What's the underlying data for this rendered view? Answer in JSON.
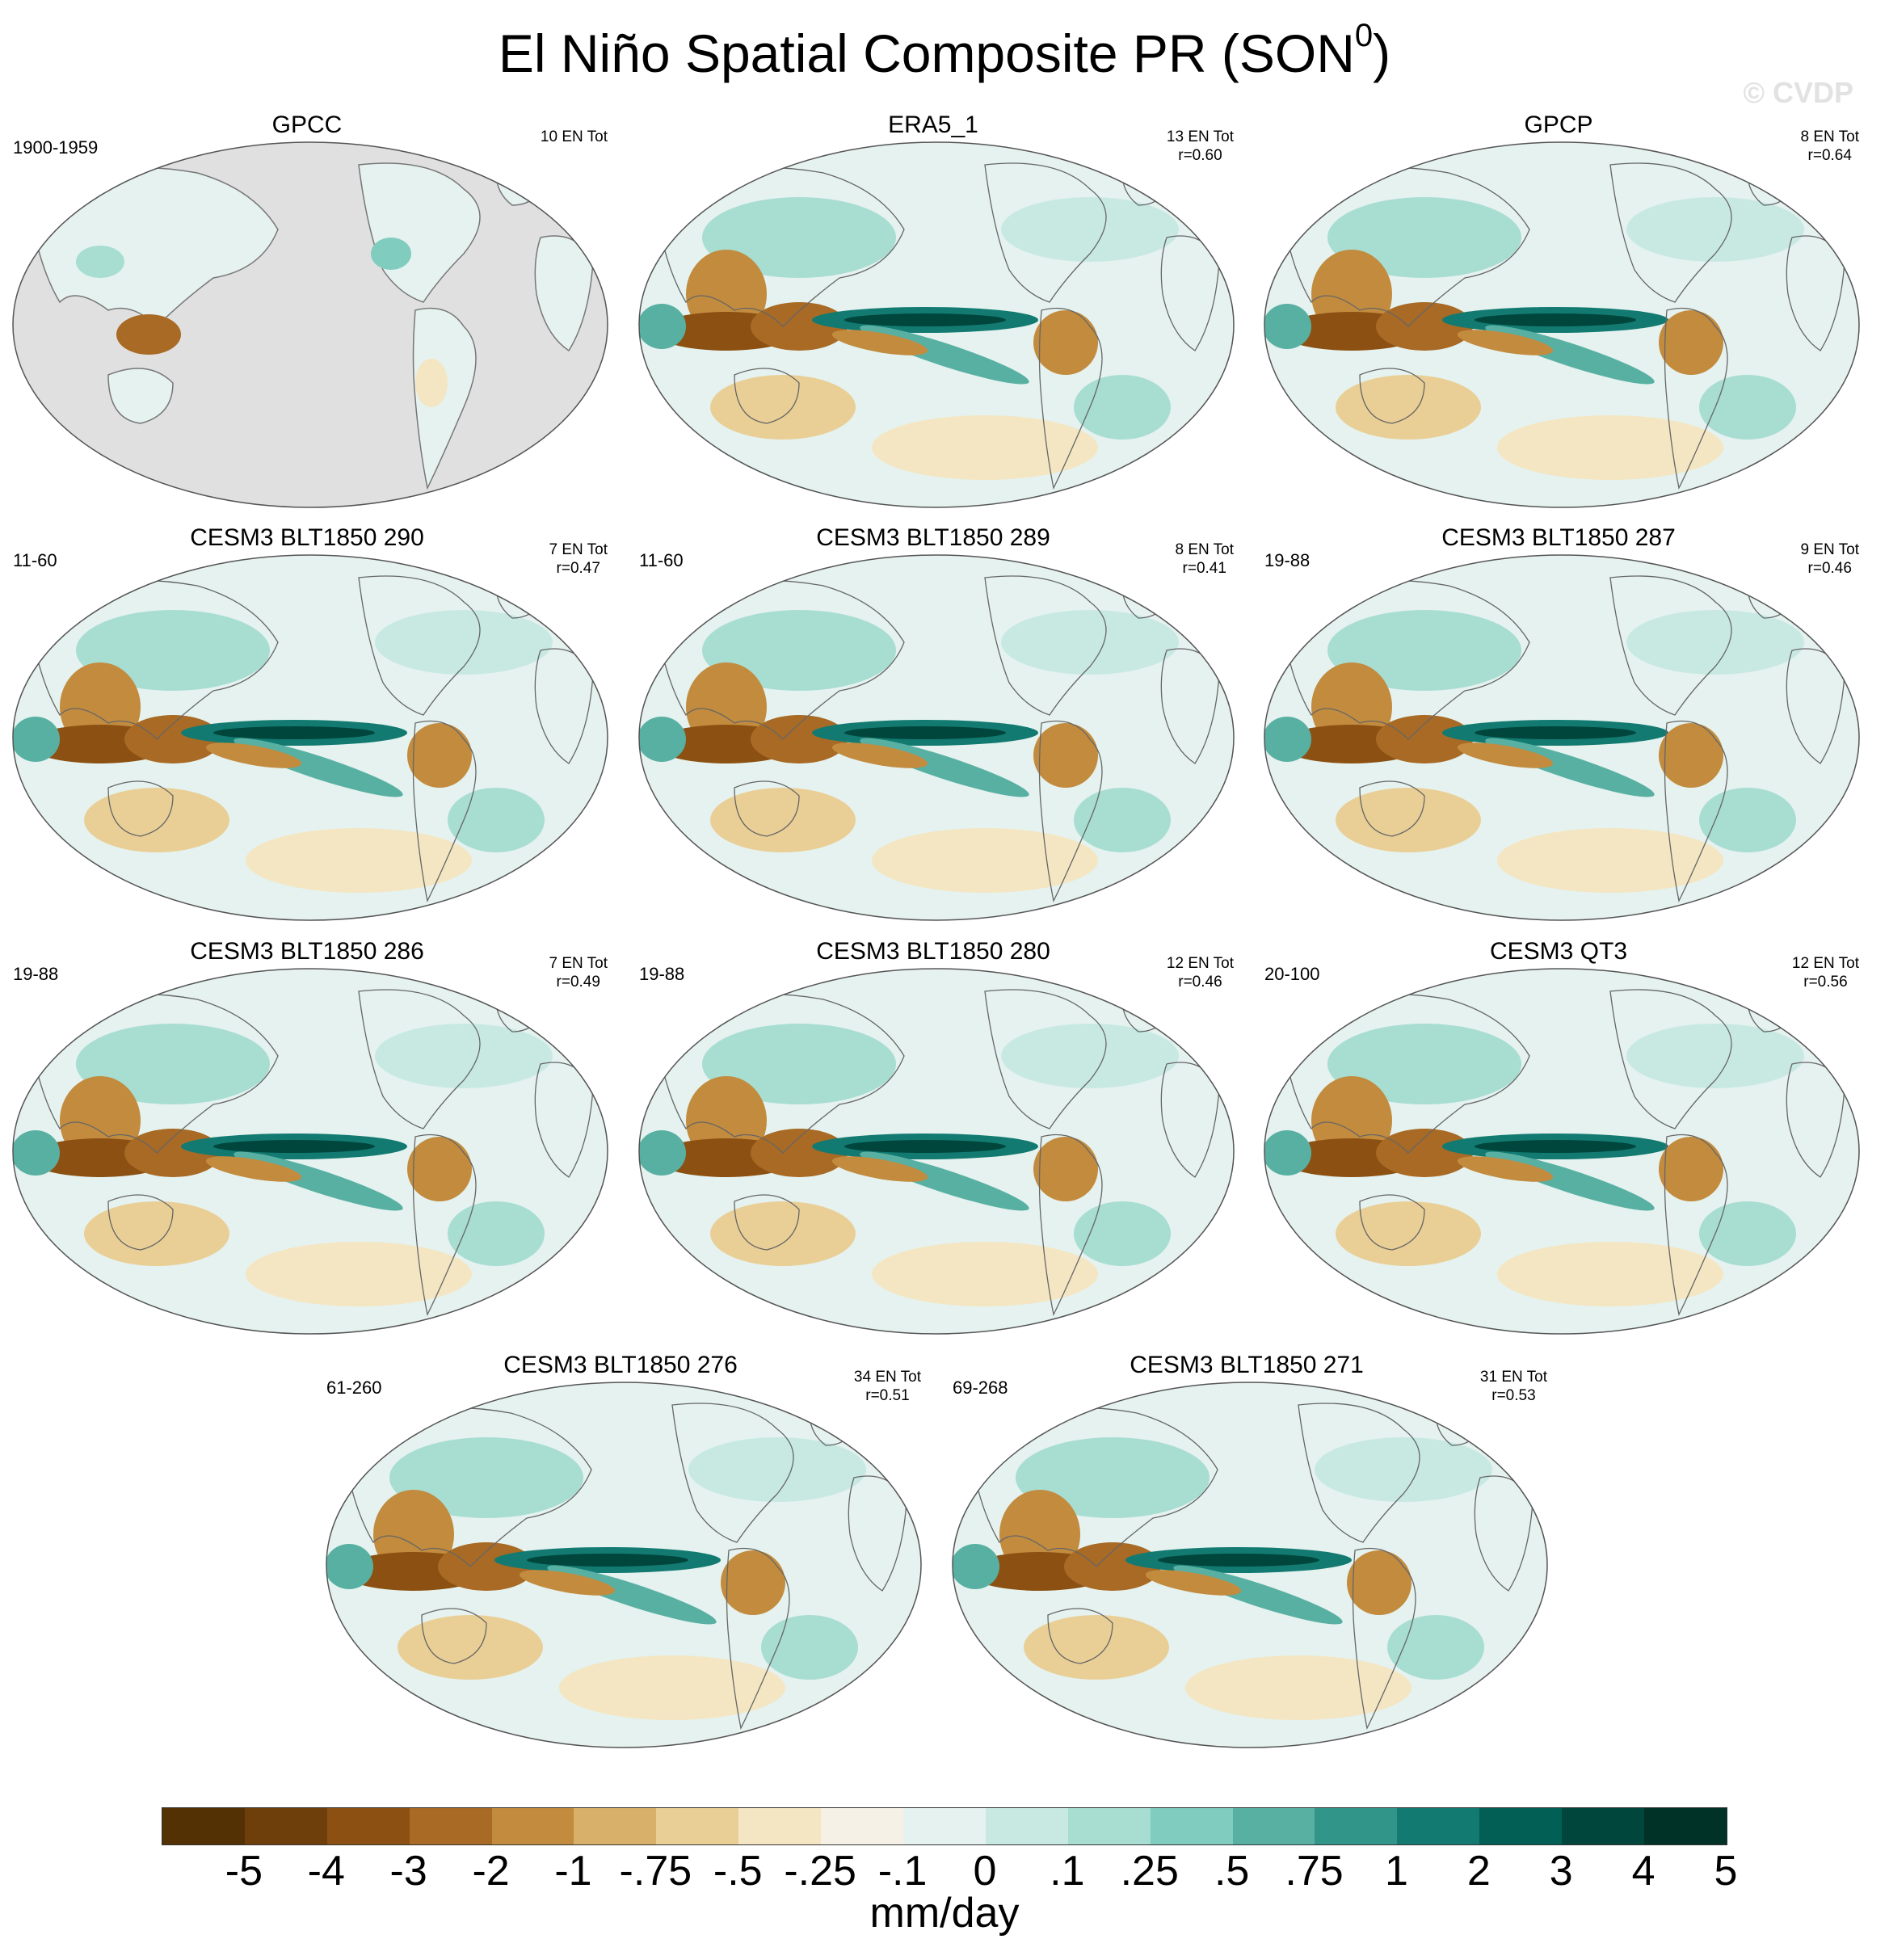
{
  "title": {
    "main": "El Niño Spatial Composite PR (SON",
    "superscript": "0",
    "close": ")"
  },
  "watermark": "© CVDP",
  "panels": [
    {
      "title": "GPCC",
      "left_label": "1900-1959",
      "right_line1": "10 EN Tot",
      "right_line2": "",
      "missing_ocean": true
    },
    {
      "title": "ERA5_1",
      "left_label": "",
      "right_line1": "13 EN Tot",
      "right_line2": "r=0.60",
      "missing_ocean": false
    },
    {
      "title": "GPCP",
      "left_label": "",
      "right_line1": "8 EN Tot",
      "right_line2": "r=0.64",
      "missing_ocean": false
    },
    {
      "title": "CESM3 BLT1850 290",
      "left_label": "11-60",
      "right_line1": "7 EN Tot",
      "right_line2": "r=0.47",
      "missing_ocean": false
    },
    {
      "title": "CESM3 BLT1850 289",
      "left_label": "11-60",
      "right_line1": "8 EN Tot",
      "right_line2": "r=0.41",
      "missing_ocean": false
    },
    {
      "title": "CESM3 BLT1850 287",
      "left_label": "19-88",
      "right_line1": "9 EN Tot",
      "right_line2": "r=0.46",
      "missing_ocean": false
    },
    {
      "title": "CESM3 BLT1850 286",
      "left_label": "19-88",
      "right_line1": "7 EN Tot",
      "right_line2": "r=0.49",
      "missing_ocean": false
    },
    {
      "title": "CESM3 BLT1850 280",
      "left_label": "19-88",
      "right_line1": "12 EN Tot",
      "right_line2": "r=0.46",
      "missing_ocean": false
    },
    {
      "title": "CESM3 QT3",
      "left_label": "20-100",
      "right_line1": "12 EN Tot",
      "right_line2": "r=0.56",
      "missing_ocean": false
    },
    {
      "title": "CESM3 BLT1850 276",
      "left_label": "61-260",
      "right_line1": "34 EN Tot",
      "right_line2": "r=0.51",
      "missing_ocean": false
    },
    {
      "title": "CESM3 BLT1850 271",
      "left_label": "69-268",
      "right_line1": "31 EN Tot",
      "right_line2": "r=0.53",
      "missing_ocean": false
    }
  ],
  "colorbar": {
    "colors": [
      "#543005",
      "#6f3f0b",
      "#8c5112",
      "#a86a25",
      "#c28b3e",
      "#d9b06a",
      "#e9cf96",
      "#f4e6c2",
      "#f6f1e6",
      "#e5f2ef",
      "#c8e9e2",
      "#a8ddd2",
      "#80ccbe",
      "#58b0a3",
      "#32958a",
      "#127a71",
      "#015f55",
      "#00463c",
      "#003228"
    ],
    "tick_labels": [
      "-5",
      "-4",
      "-3",
      "-2",
      "-1",
      "-.75",
      "-.5",
      "-.25",
      "-.1",
      "0",
      ".1",
      ".25",
      ".5",
      ".75",
      "1",
      "2",
      "3",
      "4",
      "5"
    ],
    "units": "mm/day"
  }
}
